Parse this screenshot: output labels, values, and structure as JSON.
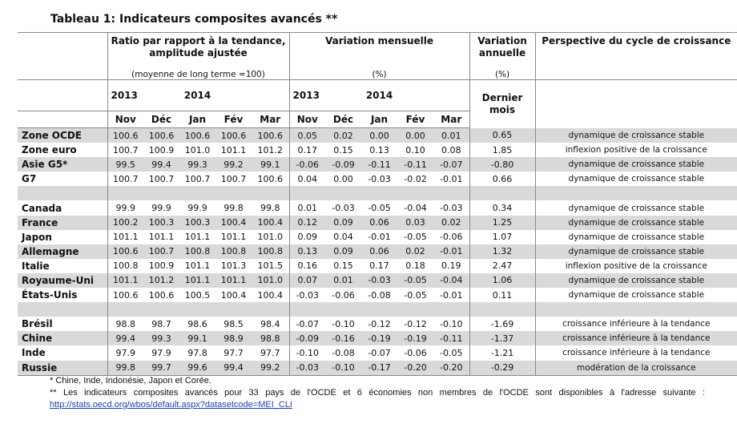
{
  "title": "Tableau 1: Indicateurs composites avancés **",
  "header": {
    "ratio_title": "Ratio par rapport à la tendance, amplitude ajustée",
    "ratio_sub": "(moyenne de long terme =100)",
    "var_m_title": "Variation mensuelle",
    "var_m_sub": "(%)",
    "var_a_title": "Variation annuelle",
    "var_a_sub": "(%)",
    "persp_title": "Perspective du cycle de croissance",
    "year_2013": "2013",
    "year_2014": "2014",
    "dernier_mois": "Dernier mois",
    "months": [
      "Nov",
      "Déc",
      "Jan",
      "Fév",
      "Mar"
    ]
  },
  "groups": [
    {
      "rows": [
        {
          "country": "Zone OCDE",
          "ratio": [
            "100.6",
            "100.6",
            "100.6",
            "100.6",
            "100.6"
          ],
          "var_m": [
            "0.05",
            "0.02",
            "0.00",
            "0.00",
            "0.01"
          ],
          "var_a": "0.65",
          "perspective": "dynamique de croissance stable"
        },
        {
          "country": "Zone euro",
          "ratio": [
            "100.7",
            "100.9",
            "101.0",
            "101.1",
            "101.2"
          ],
          "var_m": [
            "0.17",
            "0.15",
            "0.13",
            "0.10",
            "0.08"
          ],
          "var_a": "1.85",
          "perspective": "inflexion positive de la croissance"
        },
        {
          "country": "Asie G5*",
          "ratio": [
            "99.5",
            "99.4",
            "99.3",
            "99.2",
            "99.1"
          ],
          "var_m": [
            "-0.06",
            "-0.09",
            "-0.11",
            "-0.11",
            "-0.07"
          ],
          "var_a": "-0.80",
          "perspective": "dynamique de croissance stable"
        },
        {
          "country": "G7",
          "ratio": [
            "100.7",
            "100.7",
            "100.7",
            "100.7",
            "100.6"
          ],
          "var_m": [
            "0.04",
            "0.00",
            "-0.03",
            "-0.02",
            "-0.01"
          ],
          "var_a": "0.66",
          "perspective": "dynamique de croissance stable"
        }
      ]
    },
    {
      "rows": [
        {
          "country": "Canada",
          "ratio": [
            "99.9",
            "99.9",
            "99.9",
            "99.8",
            "99.8"
          ],
          "var_m": [
            "0.01",
            "-0.03",
            "-0.05",
            "-0.04",
            "-0.03"
          ],
          "var_a": "0.34",
          "perspective": "dynamique de croissance stable"
        },
        {
          "country": "France",
          "ratio": [
            "100.2",
            "100.3",
            "100.3",
            "100.4",
            "100.4"
          ],
          "var_m": [
            "0.12",
            "0.09",
            "0.06",
            "0.03",
            "0.02"
          ],
          "var_a": "1.25",
          "perspective": "dynamique de croissance stable"
        },
        {
          "country": "Japon",
          "ratio": [
            "101.1",
            "101.1",
            "101.1",
            "101.1",
            "101.0"
          ],
          "var_m": [
            "0.09",
            "0.04",
            "-0.01",
            "-0.05",
            "-0.06"
          ],
          "var_a": "1.07",
          "perspective": "dynamique de croissance stable"
        },
        {
          "country": "Allemagne",
          "ratio": [
            "100.6",
            "100.7",
            "100.8",
            "100.8",
            "100.8"
          ],
          "var_m": [
            "0.13",
            "0.09",
            "0.06",
            "0.02",
            "-0.01"
          ],
          "var_a": "1.32",
          "perspective": "dynamique de croissance stable"
        },
        {
          "country": "Italie",
          "ratio": [
            "100.8",
            "100.9",
            "101.1",
            "101.3",
            "101.5"
          ],
          "var_m": [
            "0.16",
            "0.15",
            "0.17",
            "0.18",
            "0.19"
          ],
          "var_a": "2.47",
          "perspective": "inflexion positive de la croissance"
        },
        {
          "country": "Royaume-Uni",
          "ratio": [
            "101.1",
            "101.2",
            "101.1",
            "101.1",
            "101.0"
          ],
          "var_m": [
            "0.07",
            "0.01",
            "-0.03",
            "-0.05",
            "-0.04"
          ],
          "var_a": "1.06",
          "perspective": "dynamique de croissance stable"
        },
        {
          "country": "États-Unis",
          "ratio": [
            "100.6",
            "100.6",
            "100.5",
            "100.4",
            "100.4"
          ],
          "var_m": [
            "-0.03",
            "-0.06",
            "-0.08",
            "-0.05",
            "-0.01"
          ],
          "var_a": "0.11",
          "perspective": "dynamique de croissance stable"
        }
      ]
    },
    {
      "rows": [
        {
          "country": "Brésil",
          "ratio": [
            "98.8",
            "98.7",
            "98.6",
            "98.5",
            "98.4"
          ],
          "var_m": [
            "-0.07",
            "-0.10",
            "-0.12",
            "-0.12",
            "-0.10"
          ],
          "var_a": "-1.69",
          "perspective": "croissance inférieure à la tendance"
        },
        {
          "country": "Chine",
          "ratio": [
            "99.4",
            "99.3",
            "99.1",
            "98.9",
            "98.8"
          ],
          "var_m": [
            "-0.09",
            "-0.16",
            "-0.19",
            "-0.19",
            "-0.11"
          ],
          "var_a": "-1.37",
          "perspective": "croissance inférieure à la tendance"
        },
        {
          "country": "Inde",
          "ratio": [
            "97.9",
            "97.9",
            "97.8",
            "97.7",
            "97.7"
          ],
          "var_m": [
            "-0.10",
            "-0.08",
            "-0.07",
            "-0.06",
            "-0.05"
          ],
          "var_a": "-1.21",
          "perspective": "croissance inférieure à la tendance"
        },
        {
          "country": "Russie",
          "ratio": [
            "99.8",
            "99.7",
            "99.6",
            "99.4",
            "99.2"
          ],
          "var_m": [
            "-0.03",
            "-0.10",
            "-0.17",
            "-0.20",
            "-0.20"
          ],
          "var_a": "-0.29",
          "perspective": "modération de la croissance"
        }
      ]
    }
  ],
  "footnotes": {
    "note1": "*   Chine, Inde, Indonésie, Japon et Corée.",
    "note2": "**  Les indicateurs composites avancés pour 33 pays de l'OCDE et 6 économies non membres de l'OCDE sont disponibles à l'adresse suivante :",
    "link": "http://stats.oecd.org/wbos/default.aspx?datasetcode=MEI_CLI"
  }
}
